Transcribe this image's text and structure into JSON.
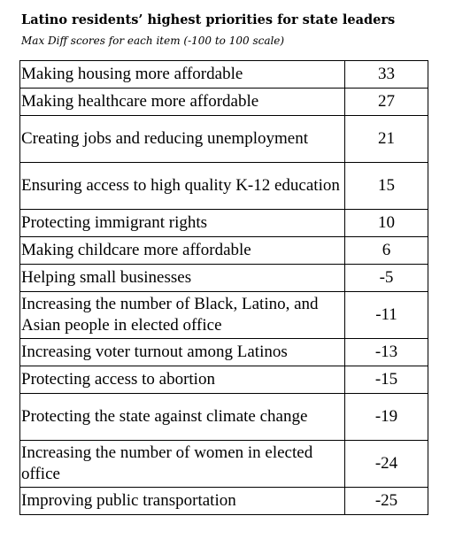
{
  "chart_data": {
    "type": "table",
    "title": "Latino residents’ highest priorities for state leaders",
    "subtitle": "Max Diff scores for each item (-100 to 100 scale)",
    "rows": [
      {
        "label": "Making housing more affordable",
        "value": 33,
        "display": "33"
      },
      {
        "label": "Making healthcare more affordable",
        "value": 27,
        "display": "27"
      },
      {
        "label": "Creating jobs and reducing unemployment",
        "value": 21,
        "display": "21"
      },
      {
        "label": "Ensuring access to high quality K-12 education",
        "value": 15,
        "display": "15"
      },
      {
        "label": "Protecting immigrant rights",
        "value": 10,
        "display": "10"
      },
      {
        "label": "Making childcare more affordable",
        "value": 6,
        "display": "6"
      },
      {
        "label": "Helping small businesses",
        "value": -5,
        "display": "-5"
      },
      {
        "label": "Increasing the number of Black, Latino, and Asian people in elected office",
        "value": -11,
        "display": "-11"
      },
      {
        "label": "Increasing voter turnout among Latinos",
        "value": -13,
        "display": "-13"
      },
      {
        "label": "Protecting access to abortion",
        "value": -15,
        "display": "-15"
      },
      {
        "label": "Protecting the state against climate change",
        "value": -19,
        "display": "-19"
      },
      {
        "label": "Increasing the number of women in elected office",
        "value": -24,
        "display": "-24"
      },
      {
        "label": "Improving public transportation",
        "value": -25,
        "display": "-25"
      }
    ]
  }
}
